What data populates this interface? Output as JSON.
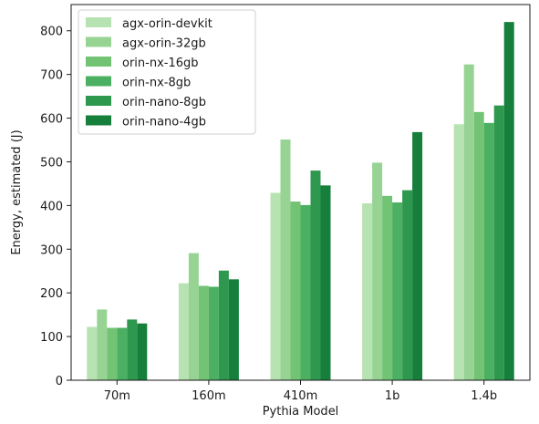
{
  "chart_data": {
    "type": "bar",
    "title": "",
    "xlabel": "Pythia Model",
    "ylabel": "Energy, estimated (J)",
    "categories": [
      "70m",
      "160m",
      "410m",
      "1b",
      "1.4b"
    ],
    "ylim": [
      0,
      860
    ],
    "yticks": [
      0,
      100,
      200,
      300,
      400,
      500,
      600,
      700,
      800
    ],
    "grid": false,
    "legend_position": "top-left",
    "series": [
      {
        "name": "agx-orin-devkit",
        "color": "#b7e2b1",
        "values": [
          122,
          222,
          429,
          405,
          586
        ]
      },
      {
        "name": "agx-orin-32gb",
        "color": "#97d494",
        "values": [
          162,
          291,
          551,
          498,
          723
        ]
      },
      {
        "name": "orin-nx-16gb",
        "color": "#73c375",
        "values": [
          120,
          216,
          409,
          422,
          614
        ]
      },
      {
        "name": "orin-nx-8gb",
        "color": "#4bb062",
        "values": [
          120,
          214,
          401,
          407,
          589
        ]
      },
      {
        "name": "orin-nano-8gb",
        "color": "#2f984f",
        "values": [
          139,
          251,
          480,
          435,
          629
        ]
      },
      {
        "name": "orin-nano-4gb",
        "color": "#157f3b",
        "values": [
          130,
          231,
          446,
          568,
          820
        ]
      }
    ]
  }
}
